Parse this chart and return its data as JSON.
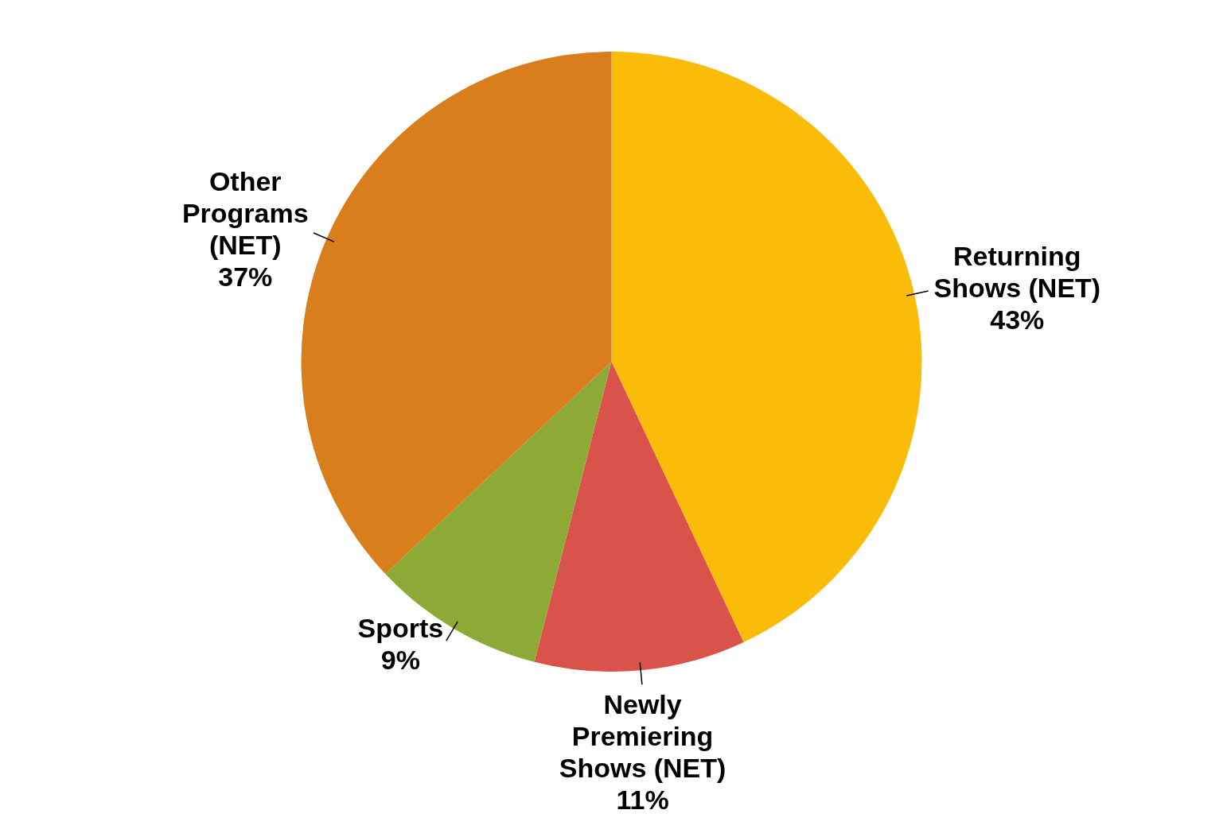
{
  "chart_data": {
    "type": "pie",
    "categories": [
      "Returning Shows (NET)",
      "Newly Premiering Shows (NET)",
      "Sports",
      "Other Programs (NET)"
    ],
    "values": [
      43,
      11,
      9,
      37
    ],
    "colors": [
      "#fbbc09",
      "#d9534a",
      "#8daa36",
      "#d97e1d"
    ],
    "value_labels": [
      "43%",
      "11%",
      "9%",
      "37%"
    ]
  }
}
